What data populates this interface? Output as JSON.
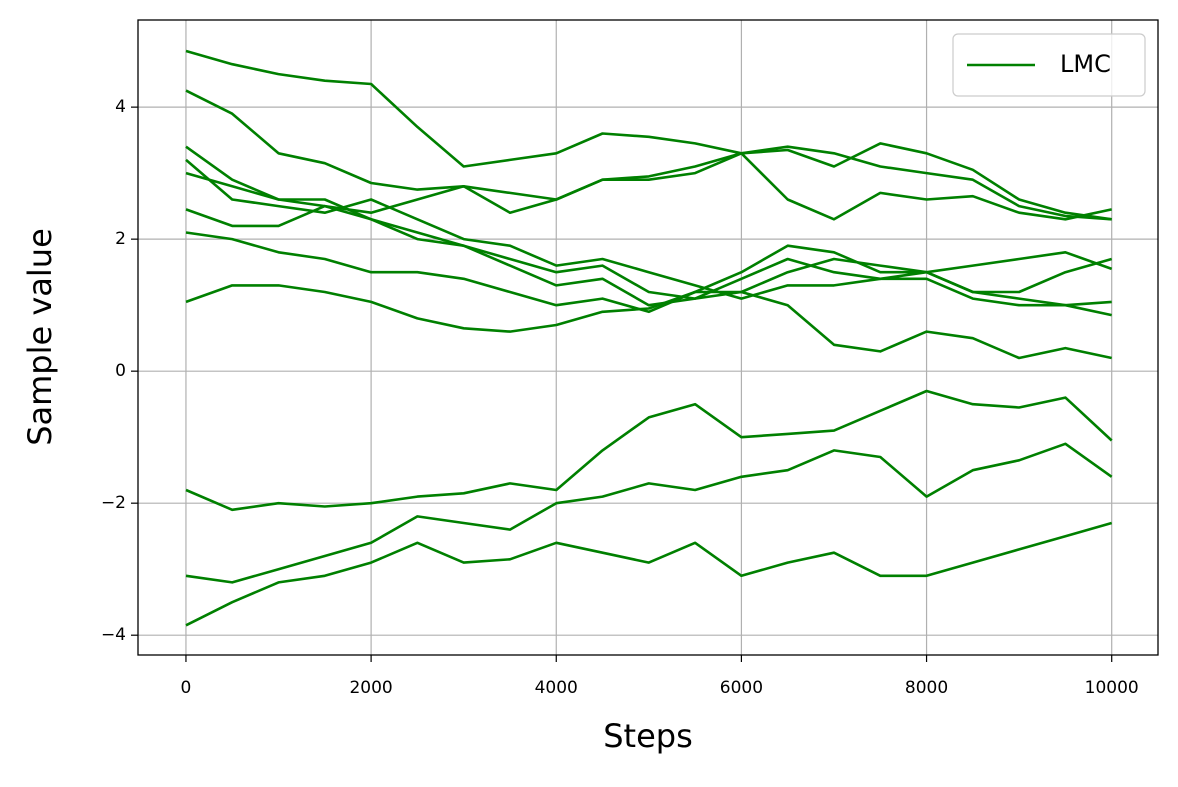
{
  "chart_data": {
    "type": "line",
    "xlabel": "Steps",
    "ylabel": "Sample value",
    "x": [
      0,
      500,
      1000,
      1500,
      2000,
      2500,
      3000,
      3500,
      4000,
      4500,
      5000,
      5500,
      6000,
      6500,
      7000,
      7500,
      8000,
      8500,
      9000,
      9500,
      10000
    ],
    "series": [
      {
        "name": "LMC",
        "color": "#008000",
        "values": [
          4.85,
          4.65,
          4.5,
          4.4,
          4.35,
          3.7,
          3.1,
          3.2,
          3.3,
          3.6,
          3.55,
          3.45,
          3.3,
          3.35,
          3.1,
          3.45,
          3.3,
          3.05,
          2.6,
          2.4,
          2.3
        ]
      },
      {
        "color": "#008000",
        "values": [
          4.25,
          3.9,
          3.3,
          3.15,
          2.85,
          2.75,
          2.8,
          2.4,
          2.6,
          2.9,
          2.9,
          3.0,
          3.3,
          2.6,
          2.3,
          2.7,
          2.6,
          2.65,
          2.4,
          2.3,
          2.45
        ]
      },
      {
        "color": "#008000",
        "values": [
          3.4,
          2.9,
          2.6,
          2.5,
          2.4,
          2.6,
          2.8,
          2.7,
          2.6,
          2.9,
          2.95,
          3.1,
          3.3,
          3.4,
          3.3,
          3.1,
          3.0,
          2.9,
          2.5,
          2.35,
          2.3
        ]
      },
      {
        "color": "#008000",
        "values": [
          3.0,
          2.8,
          2.6,
          2.6,
          2.3,
          2.1,
          1.9,
          1.7,
          1.5,
          1.6,
          1.2,
          1.1,
          1.4,
          1.7,
          1.5,
          1.4,
          1.5,
          1.2,
          1.1,
          1.0,
          1.05
        ]
      },
      {
        "color": "#008000",
        "values": [
          2.45,
          2.2,
          2.2,
          2.5,
          2.3,
          2.0,
          1.9,
          1.6,
          1.3,
          1.4,
          1.0,
          1.1,
          1.2,
          1.5,
          1.7,
          1.6,
          1.5,
          1.6,
          1.7,
          1.8,
          1.55
        ]
      },
      {
        "color": "#008000",
        "values": [
          2.1,
          2.0,
          1.8,
          1.7,
          1.5,
          1.5,
          1.4,
          1.2,
          1.0,
          1.1,
          0.9,
          1.2,
          1.2,
          1.0,
          0.4,
          0.3,
          0.6,
          0.5,
          0.2,
          0.35,
          0.2
        ]
      },
      {
        "color": "#008000",
        "values": [
          1.05,
          1.3,
          1.3,
          1.2,
          1.05,
          0.8,
          0.65,
          0.6,
          0.7,
          0.9,
          0.95,
          1.2,
          1.5,
          1.9,
          1.8,
          1.5,
          1.5,
          1.2,
          1.2,
          1.5,
          1.7
        ]
      },
      {
        "color": "#008000",
        "values": [
          3.2,
          2.6,
          2.5,
          2.4,
          2.6,
          2.3,
          2.0,
          1.9,
          1.6,
          1.7,
          1.5,
          1.3,
          1.1,
          1.3,
          1.3,
          1.4,
          1.4,
          1.1,
          1.0,
          1.0,
          0.85
        ]
      },
      {
        "color": "#008000",
        "values": [
          -1.8,
          -2.1,
          -2.0,
          -2.05,
          -2.0,
          -1.9,
          -1.85,
          -1.7,
          -1.8,
          -1.2,
          -0.7,
          -0.5,
          -1.0,
          -0.95,
          -0.9,
          -0.6,
          -0.3,
          -0.5,
          -0.55,
          -0.4,
          -1.05
        ]
      },
      {
        "color": "#008000",
        "values": [
          -3.1,
          -3.2,
          -3.0,
          -2.8,
          -2.6,
          -2.2,
          -2.3,
          -2.4,
          -2.0,
          -1.9,
          -1.7,
          -1.8,
          -1.6,
          -1.5,
          -1.2,
          -1.3,
          -1.9,
          -1.5,
          -1.35,
          -1.1,
          -1.6
        ]
      },
      {
        "color": "#008000",
        "values": [
          -3.85,
          -3.5,
          -3.2,
          -3.1,
          -2.9,
          -2.6,
          -2.9,
          -2.85,
          -2.6,
          -2.75,
          -2.9,
          -2.6,
          -3.1,
          -2.9,
          -2.75,
          -3.1,
          -3.1,
          -2.9,
          -2.7,
          -2.5,
          -2.3
        ]
      }
    ],
    "xlim": [
      -518,
      10500
    ],
    "ylim": [
      -4.3,
      5.32
    ],
    "xticks": [
      0,
      2000,
      4000,
      6000,
      8000,
      10000
    ],
    "yticks": [
      {
        "value": -4,
        "label": "−4"
      },
      {
        "value": -2,
        "label": "−2"
      },
      0,
      2,
      4
    ],
    "grid": true,
    "legend": "upper right"
  }
}
